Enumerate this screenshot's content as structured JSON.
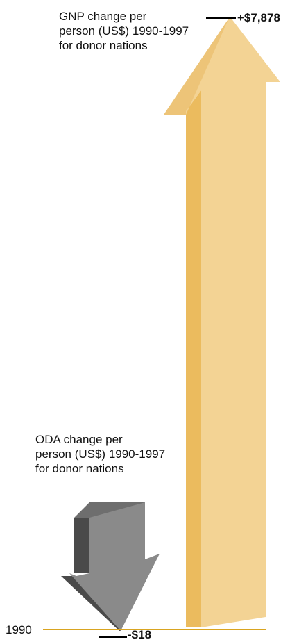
{
  "chart_data": {
    "type": "bar",
    "categories": [
      "GNP change per person (US$) 1990-1997 for donor nations",
      "ODA change per person (US$) 1990-1997 for donor nations"
    ],
    "values": [
      7878,
      -18
    ],
    "value_labels": [
      "+$7,878",
      "-$18"
    ],
    "series_labels": {
      "gnp": [
        "GNP change per",
        "person (US$) 1990-1997",
        "for donor nations"
      ],
      "oda": [
        "ODA change per",
        "person (US$) 1990-1997",
        "for donor nations"
      ]
    },
    "baseline_label": "1990"
  },
  "colors": {
    "gnp_front": "#F3D394",
    "gnp_side": "#EBBB5E",
    "gnp_head_side": "#EDC478",
    "oda_front": "#8A8A8A",
    "oda_side": "#4A4A4A",
    "oda_top": "#6E6E6E",
    "baseline": "#D9A420",
    "marker": "#000000"
  }
}
